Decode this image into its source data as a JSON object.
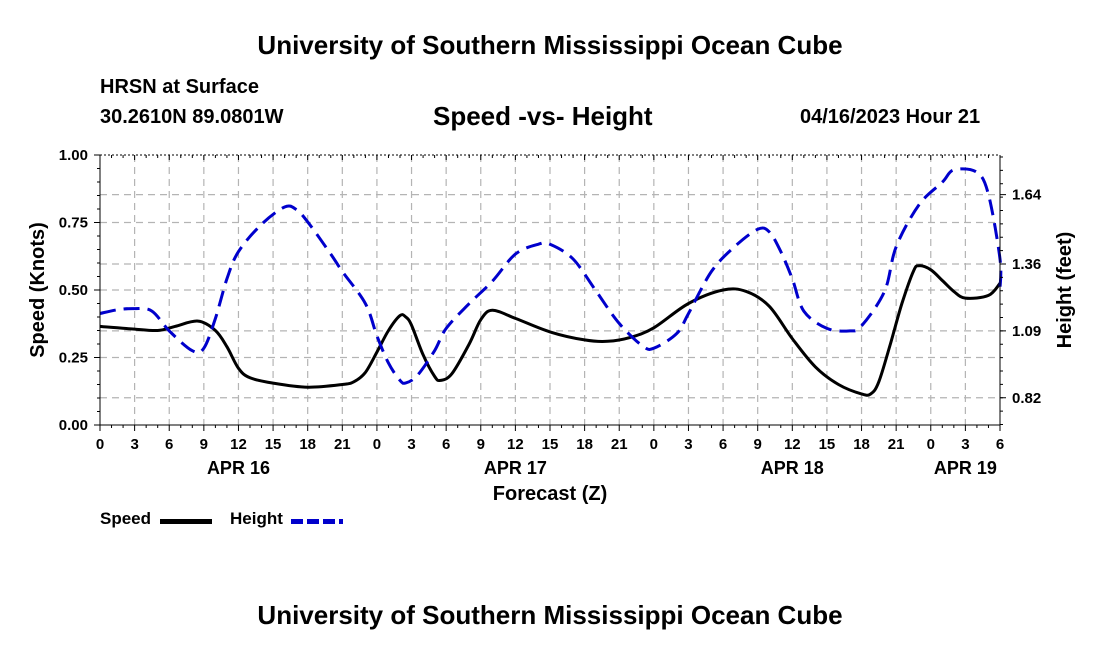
{
  "header": {
    "main_title": "University of Southern Mississippi Ocean Cube",
    "station": "HRSN at Surface",
    "coords": "30.2610N  89.0801W",
    "subtitle": "Speed -vs- Height",
    "datetime": "04/16/2023 Hour 21",
    "footer_title": "University of Southern Mississippi Ocean Cube"
  },
  "colors": {
    "speed": "#000000",
    "height": "#0000cc",
    "grid": "#b4b4b4"
  },
  "legend": {
    "speed_label": "Speed",
    "height_label": "Height"
  },
  "chart_data": {
    "type": "line",
    "title": "Speed -vs- Height",
    "xlabel": "Forecast (Z)",
    "ylabel_left": "Speed (Knots)",
    "ylabel_right": "Height (feet)",
    "x_unit": "hours since APR 16 00Z",
    "xlim": [
      0,
      78
    ],
    "ylim_left": [
      0,
      1
    ],
    "ylim_right": [
      0.71,
      1.8
    ],
    "x_tick_hours": [
      0,
      3,
      6,
      9,
      12,
      15,
      18,
      21,
      24,
      27,
      30,
      33,
      36,
      39,
      42,
      45,
      48,
      51,
      54,
      57,
      60,
      63,
      66,
      69,
      72,
      75,
      78
    ],
    "x_tick_labels": [
      "0",
      "3",
      "6",
      "9",
      "12",
      "15",
      "18",
      "21",
      "0",
      "3",
      "6",
      "9",
      "12",
      "15",
      "18",
      "21",
      "0",
      "3",
      "6",
      "9",
      "12",
      "15",
      "18",
      "21",
      "0",
      "3",
      "6"
    ],
    "day_labels": [
      {
        "hour": 12,
        "label": "APR 16"
      },
      {
        "hour": 36,
        "label": "APR 17"
      },
      {
        "hour": 60,
        "label": "APR 18"
      },
      {
        "hour": 75,
        "label": "APR 19"
      }
    ],
    "y_left_ticks": [
      0,
      0.25,
      0.5,
      0.75,
      1.0
    ],
    "y_left_tick_labels": [
      "0.00",
      "0.25",
      "0.50",
      "0.75",
      "1.00"
    ],
    "y_right_ticks": [
      0.82,
      1.09,
      1.36,
      1.64
    ],
    "y_right_tick_labels": [
      "0.82",
      "1.09",
      "1.36",
      "1.64"
    ],
    "grid": true,
    "series": [
      {
        "name": "Speed",
        "axis": "left",
        "style": "solid",
        "points": [
          [
            0,
            0.365
          ],
          [
            1.5,
            0.36
          ],
          [
            3,
            0.355
          ],
          [
            5,
            0.35
          ],
          [
            6.5,
            0.365
          ],
          [
            8.5,
            0.385
          ],
          [
            10,
            0.35
          ],
          [
            11,
            0.29
          ],
          [
            12,
            0.21
          ],
          [
            13,
            0.175
          ],
          [
            15,
            0.155
          ],
          [
            18,
            0.14
          ],
          [
            21,
            0.15
          ],
          [
            22,
            0.16
          ],
          [
            23,
            0.195
          ],
          [
            24,
            0.27
          ],
          [
            25,
            0.35
          ],
          [
            26,
            0.405
          ],
          [
            26.5,
            0.4
          ],
          [
            27,
            0.37
          ],
          [
            28,
            0.26
          ],
          [
            29,
            0.18
          ],
          [
            29.5,
            0.165
          ],
          [
            30.5,
            0.19
          ],
          [
            32,
            0.3
          ],
          [
            33,
            0.39
          ],
          [
            34,
            0.425
          ],
          [
            36,
            0.395
          ],
          [
            39,
            0.345
          ],
          [
            42,
            0.315
          ],
          [
            44,
            0.31
          ],
          [
            46,
            0.325
          ],
          [
            48,
            0.36
          ],
          [
            51,
            0.45
          ],
          [
            54,
            0.5
          ],
          [
            56,
            0.495
          ],
          [
            58,
            0.44
          ],
          [
            60,
            0.32
          ],
          [
            62,
            0.215
          ],
          [
            64,
            0.15
          ],
          [
            66,
            0.115
          ],
          [
            66.8,
            0.115
          ],
          [
            67.5,
            0.16
          ],
          [
            68.5,
            0.3
          ],
          [
            69.5,
            0.45
          ],
          [
            70.5,
            0.57
          ],
          [
            71,
            0.59
          ],
          [
            72,
            0.575
          ],
          [
            73,
            0.535
          ],
          [
            74,
            0.495
          ],
          [
            75,
            0.47
          ],
          [
            77,
            0.48
          ],
          [
            78,
            0.525
          ]
        ]
      },
      {
        "name": "Height",
        "axis": "right",
        "style": "dashed",
        "points": [
          [
            0,
            1.16
          ],
          [
            1.5,
            1.175
          ],
          [
            3,
            1.18
          ],
          [
            4.5,
            1.17
          ],
          [
            6,
            1.09
          ],
          [
            8,
            1.01
          ],
          [
            9,
            1.02
          ],
          [
            10,
            1.14
          ],
          [
            11,
            1.3
          ],
          [
            12,
            1.41
          ],
          [
            14,
            1.52
          ],
          [
            16,
            1.59
          ],
          [
            17,
            1.58
          ],
          [
            18,
            1.53
          ],
          [
            20,
            1.4
          ],
          [
            21,
            1.33
          ],
          [
            23,
            1.2
          ],
          [
            24,
            1.07
          ],
          [
            25,
            0.96
          ],
          [
            26,
            0.89
          ],
          [
            26.5,
            0.88
          ],
          [
            27.5,
            0.91
          ],
          [
            29,
            1.01
          ],
          [
            30,
            1.1
          ],
          [
            32,
            1.2
          ],
          [
            34,
            1.29
          ],
          [
            36,
            1.4
          ],
          [
            38,
            1.44
          ],
          [
            39,
            1.44
          ],
          [
            41,
            1.38
          ],
          [
            43,
            1.25
          ],
          [
            45,
            1.12
          ],
          [
            47,
            1.03
          ],
          [
            48,
            1.02
          ],
          [
            50,
            1.08
          ],
          [
            51,
            1.16
          ],
          [
            53,
            1.33
          ],
          [
            55,
            1.43
          ],
          [
            57,
            1.5
          ],
          [
            58,
            1.49
          ],
          [
            59,
            1.41
          ],
          [
            60,
            1.3
          ],
          [
            61,
            1.17
          ],
          [
            63,
            1.1
          ],
          [
            65,
            1.09
          ],
          [
            66,
            1.11
          ],
          [
            68,
            1.25
          ],
          [
            69,
            1.43
          ],
          [
            71,
            1.6
          ],
          [
            73,
            1.69
          ],
          [
            74,
            1.74
          ],
          [
            76,
            1.73
          ],
          [
            77,
            1.64
          ],
          [
            78,
            1.38
          ],
          [
            78,
            1.26
          ]
        ]
      }
    ]
  }
}
